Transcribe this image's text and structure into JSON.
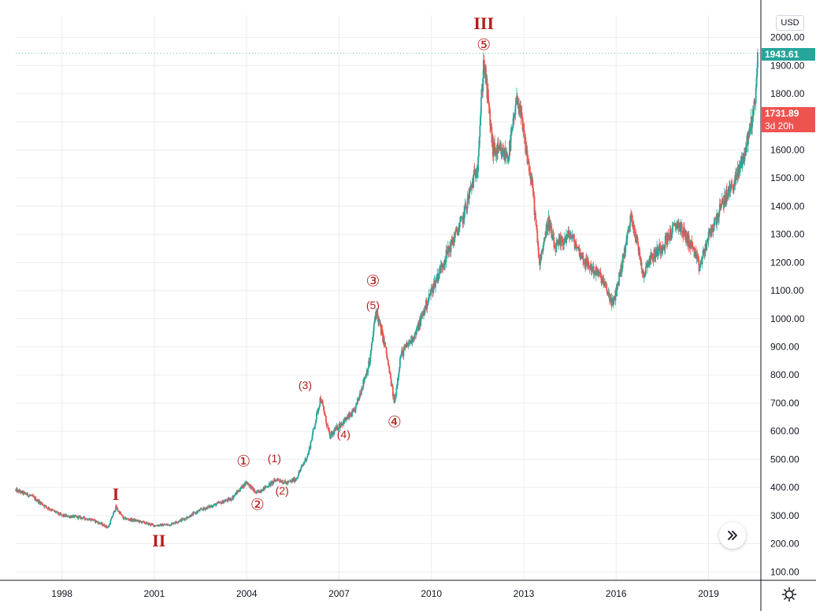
{
  "chart_data": {
    "type": "candlestick",
    "currency": "USD",
    "x_ticks": [
      "1998",
      "2001",
      "2004",
      "2007",
      "2010",
      "2013",
      "2016",
      "2019"
    ],
    "y_ticks": [
      "100.00",
      "200.00",
      "300.00",
      "400.00",
      "500.00",
      "600.00",
      "700.00",
      "800.00",
      "900.00",
      "1000.00",
      "1100.00",
      "1200.00",
      "1300.00",
      "1400.00",
      "1500.00",
      "1600.00",
      "1700.00",
      "1800.00",
      "1900.00",
      "2000.00"
    ],
    "xlim": [
      1996.5,
      2020.7
    ],
    "ylim": [
      70,
      2080
    ],
    "grid": true,
    "last_price": "1943.61",
    "close_price": "1731.89",
    "countdown": "3d 20h",
    "price_path": [
      [
        1996.5,
        390
      ],
      [
        1997.0,
        370
      ],
      [
        1997.5,
        330
      ],
      [
        1998.0,
        300
      ],
      [
        1998.5,
        295
      ],
      [
        1999.0,
        285
      ],
      [
        1999.5,
        258
      ],
      [
        1999.75,
        330
      ],
      [
        2000.0,
        290
      ],
      [
        2000.5,
        280
      ],
      [
        2001.0,
        265
      ],
      [
        2001.5,
        268
      ],
      [
        2002.0,
        290
      ],
      [
        2002.5,
        320
      ],
      [
        2003.0,
        340
      ],
      [
        2003.5,
        360
      ],
      [
        2004.0,
        420
      ],
      [
        2004.3,
        380
      ],
      [
        2004.6,
        400
      ],
      [
        2005.0,
        430
      ],
      [
        2005.3,
        415
      ],
      [
        2005.6,
        430
      ],
      [
        2006.0,
        520
      ],
      [
        2006.4,
        720
      ],
      [
        2006.7,
        580
      ],
      [
        2007.0,
        620
      ],
      [
        2007.5,
        670
      ],
      [
        2008.0,
        850
      ],
      [
        2008.2,
        1030
      ],
      [
        2008.5,
        900
      ],
      [
        2008.8,
        700
      ],
      [
        2009.0,
        870
      ],
      [
        2009.5,
        950
      ],
      [
        2010.0,
        1100
      ],
      [
        2010.5,
        1230
      ],
      [
        2011.0,
        1350
      ],
      [
        2011.5,
        1550
      ],
      [
        2011.7,
        1920
      ],
      [
        2012.0,
        1600
      ],
      [
        2012.5,
        1580
      ],
      [
        2012.8,
        1790
      ],
      [
        2013.0,
        1650
      ],
      [
        2013.3,
        1450
      ],
      [
        2013.5,
        1200
      ],
      [
        2013.8,
        1350
      ],
      [
        2014.0,
        1250
      ],
      [
        2014.5,
        1300
      ],
      [
        2015.0,
        1200
      ],
      [
        2015.5,
        1150
      ],
      [
        2015.9,
        1050
      ],
      [
        2016.2,
        1200
      ],
      [
        2016.5,
        1370
      ],
      [
        2016.9,
        1150
      ],
      [
        2017.0,
        1200
      ],
      [
        2017.5,
        1260
      ],
      [
        2018.0,
        1340
      ],
      [
        2018.5,
        1250
      ],
      [
        2018.7,
        1180
      ],
      [
        2019.0,
        1290
      ],
      [
        2019.5,
        1420
      ],
      [
        2019.9,
        1500
      ],
      [
        2020.2,
        1600
      ],
      [
        2020.5,
        1760
      ],
      [
        2020.6,
        1943.61
      ]
    ],
    "annotations": [
      {
        "label": "I",
        "x": 1999.75,
        "y": 355,
        "style": "roman"
      },
      {
        "label": "II",
        "x": 2001.15,
        "y": 190,
        "style": "roman"
      },
      {
        "label": "III",
        "x": 2011.7,
        "y": 2030,
        "style": "roman"
      },
      {
        "label": "①",
        "x": 2003.9,
        "y": 475,
        "style": "circle"
      },
      {
        "label": "②",
        "x": 2004.35,
        "y": 320,
        "style": "circle"
      },
      {
        "label": "③",
        "x": 2008.1,
        "y": 1115,
        "style": "circle"
      },
      {
        "label": "④",
        "x": 2008.8,
        "y": 615,
        "style": "circle"
      },
      {
        "label": "⑤",
        "x": 2011.7,
        "y": 1955,
        "style": "circle"
      },
      {
        "label": "(1)",
        "x": 2004.9,
        "y": 490,
        "style": "paren"
      },
      {
        "label": "(2)",
        "x": 2005.15,
        "y": 375,
        "style": "paren"
      },
      {
        "label": "(3)",
        "x": 2005.9,
        "y": 750,
        "style": "paren"
      },
      {
        "label": "(4)",
        "x": 2007.15,
        "y": 575,
        "style": "paren"
      },
      {
        "label": "(5)",
        "x": 2008.1,
        "y": 1035,
        "style": "paren"
      }
    ],
    "colors": {
      "up": "#26a69a",
      "down": "#ef5350",
      "wave_label": "#b71c1c",
      "grid": "#e9edf2",
      "axis_text": "#131722"
    }
  },
  "ui": {
    "currency_button": "USD",
    "scroll_icon": "double-chevron-right-icon",
    "settings_icon": "gear-icon"
  }
}
